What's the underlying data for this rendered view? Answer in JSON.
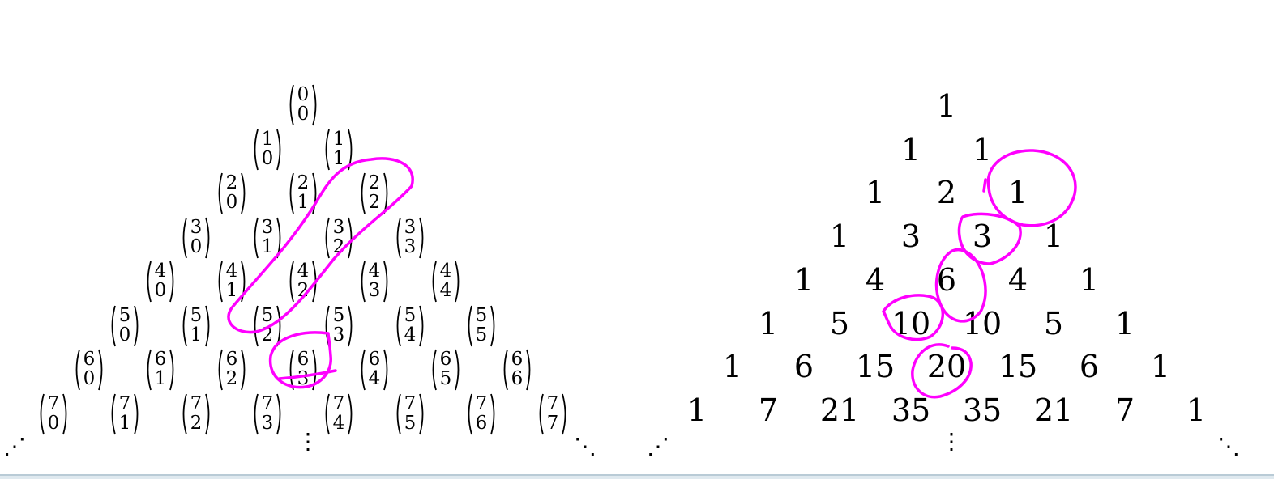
{
  "left_triangle": {
    "rows": [
      [
        [
          "0",
          "0"
        ]
      ],
      [
        [
          "1",
          "0"
        ],
        [
          "1",
          "1"
        ]
      ],
      [
        [
          "2",
          "0"
        ],
        [
          "2",
          "1"
        ],
        [
          "2",
          "2"
        ]
      ],
      [
        [
          "3",
          "0"
        ],
        [
          "3",
          "1"
        ],
        [
          "3",
          "2"
        ],
        [
          "3",
          "3"
        ]
      ],
      [
        [
          "4",
          "0"
        ],
        [
          "4",
          "1"
        ],
        [
          "4",
          "2"
        ],
        [
          "4",
          "3"
        ],
        [
          "4",
          "4"
        ]
      ],
      [
        [
          "5",
          "0"
        ],
        [
          "5",
          "1"
        ],
        [
          "5",
          "2"
        ],
        [
          "5",
          "3"
        ],
        [
          "5",
          "4"
        ],
        [
          "5",
          "5"
        ]
      ],
      [
        [
          "6",
          "0"
        ],
        [
          "6",
          "1"
        ],
        [
          "6",
          "2"
        ],
        [
          "6",
          "3"
        ],
        [
          "6",
          "4"
        ],
        [
          "6",
          "5"
        ],
        [
          "6",
          "6"
        ]
      ],
      [
        [
          "7",
          "0"
        ],
        [
          "7",
          "1"
        ],
        [
          "7",
          "2"
        ],
        [
          "7",
          "3"
        ],
        [
          "7",
          "4"
        ],
        [
          "7",
          "5"
        ],
        [
          "7",
          "6"
        ],
        [
          "7",
          "7"
        ]
      ]
    ],
    "continuation": {
      "left": "⋰",
      "middle": "⋮",
      "right": "⋱"
    }
  },
  "right_triangle": {
    "rows": [
      [
        "1"
      ],
      [
        "1",
        "1"
      ],
      [
        "1",
        "2",
        "1"
      ],
      [
        "1",
        "3",
        "3",
        "1"
      ],
      [
        "1",
        "4",
        "6",
        "4",
        "1"
      ],
      [
        "1",
        "5",
        "10",
        "10",
        "5",
        "1"
      ],
      [
        "1",
        "6",
        "15",
        "20",
        "15",
        "6",
        "1"
      ],
      [
        "1",
        "7",
        "21",
        "35",
        "35",
        "21",
        "7",
        "1"
      ]
    ],
    "continuation": {
      "left": "⋰",
      "middle": "⋮",
      "right": "⋱"
    }
  },
  "annotations": {
    "color": "#ff00ff",
    "marks": [
      "hockey-stick-loop-left",
      "sum-circle-left",
      "circle-right-1",
      "circle-right-3",
      "circle-right-6",
      "circle-right-10",
      "circle-right-20"
    ]
  },
  "bottom_strip_color": "#dfe9ef"
}
